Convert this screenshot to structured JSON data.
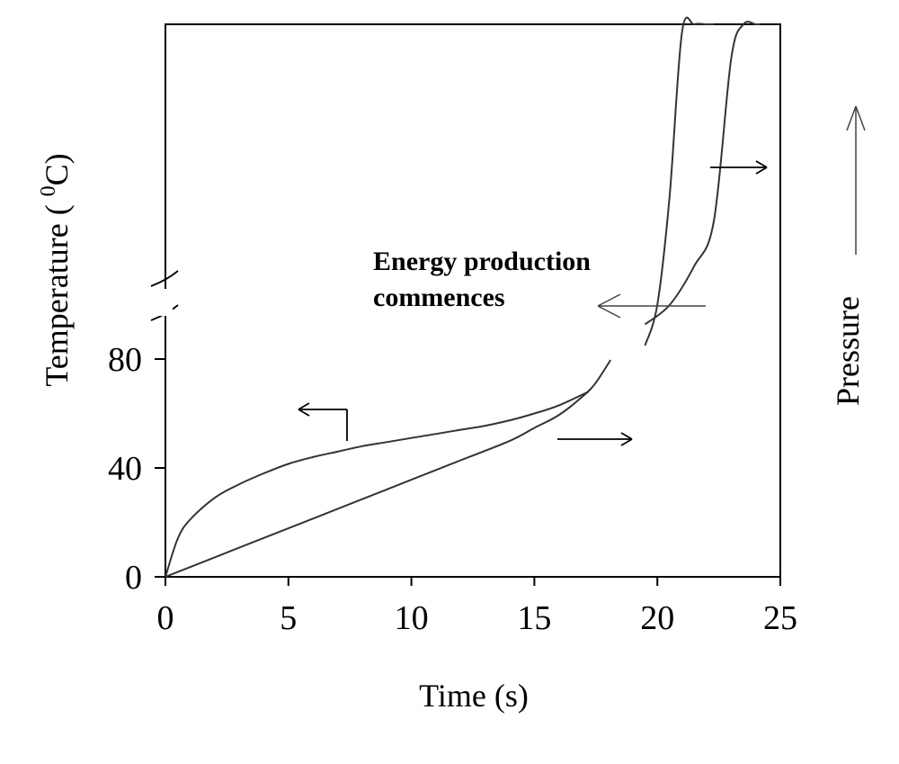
{
  "chart_data": {
    "type": "line",
    "title": "",
    "xlabel": "Time (s)",
    "ylabel_prefix": "Temperature ( ",
    "ylabel_sup": "0",
    "ylabel_suffix": "C)",
    "right_label": "Pressure",
    "annotation_line1": "Energy production",
    "annotation_line2": "commences",
    "x_ticks": [
      "0",
      "5",
      "10",
      "15",
      "20",
      "25"
    ],
    "x_tick_values": [
      0,
      5,
      10,
      15,
      20,
      25
    ],
    "y_ticks": [
      "0",
      "40",
      "80"
    ],
    "y_tick_values": [
      0,
      40,
      80
    ],
    "xlim": [
      0,
      25
    ],
    "y_axis_break": true,
    "grid": false,
    "series": [
      {
        "axis": "left",
        "x": [
          0,
          0.5,
          1,
          2,
          3,
          4,
          5,
          6,
          7,
          8,
          9,
          10,
          11,
          12,
          13,
          14,
          15,
          16,
          17.2
        ],
        "y": [
          0,
          14,
          21,
          29,
          34,
          38,
          41.5,
          44,
          46,
          48,
          49.5,
          51,
          52.5,
          54,
          55.5,
          57.5,
          60,
          63,
          68
        ]
      },
      {
        "axis": "right",
        "x": [
          0,
          2,
          4,
          6,
          8,
          10,
          12,
          14,
          15,
          16,
          17,
          17.5,
          18.1
        ],
        "y": [
          0,
          6,
          12,
          18,
          24,
          30,
          36,
          42,
          46,
          50,
          56,
          60,
          67
        ]
      },
      {
        "axis": "left",
        "x": [
          19.5,
          20,
          20.5,
          21,
          21.5,
          22,
          22.3
        ],
        "y": [
          85,
          100,
          140,
          200,
          290,
          420,
          600
        ]
      },
      {
        "axis": "right",
        "x": [
          19.5,
          20.5,
          21.5,
          22.3,
          23,
          23.5,
          24,
          24.2
        ],
        "y": [
          78,
          84,
          96,
          110,
          160,
          240,
          380,
          600
        ]
      }
    ]
  }
}
